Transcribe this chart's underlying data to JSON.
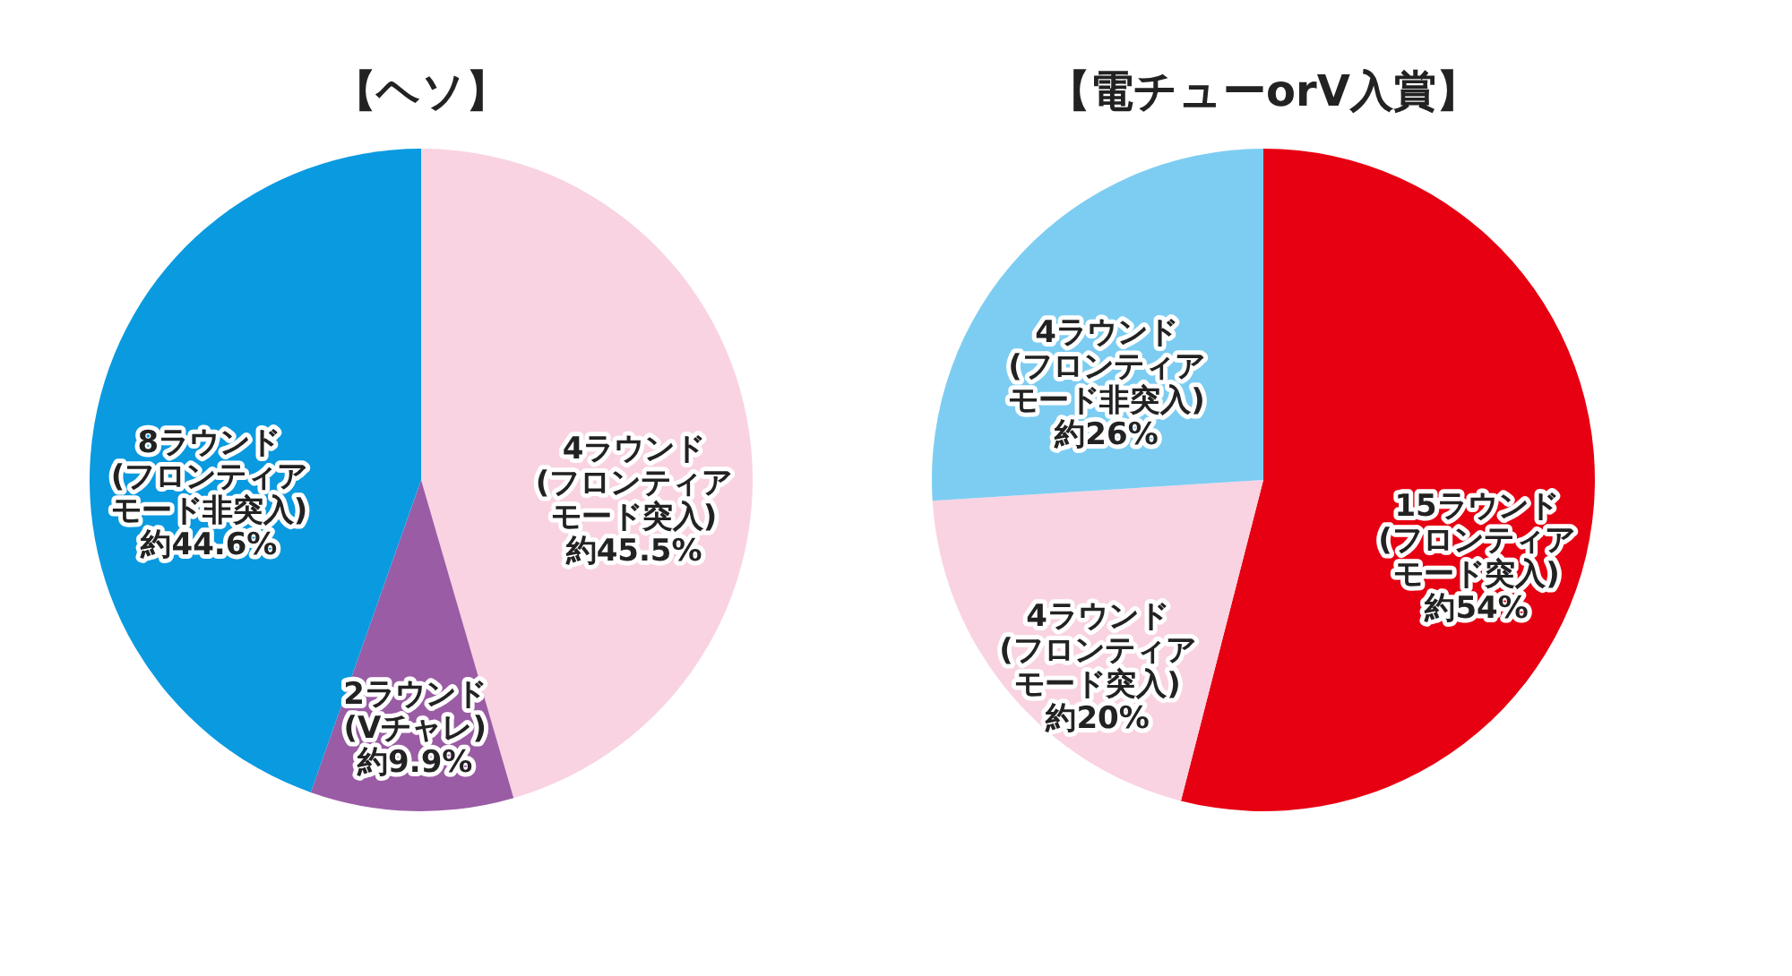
{
  "chart_data": [
    {
      "type": "pie",
      "title": "【ヘソ】",
      "categories": [
        "4ラウンド\n(フロンティアモード突入)",
        "2ラウンド\n(Vチャレ)",
        "8ラウンド\n(フロンティアモード非突入)"
      ],
      "values": [
        45.5,
        9.9,
        44.6
      ],
      "colors": [
        "#f9d3e2",
        "#9a5ca4",
        "#0a9ae0"
      ],
      "value_labels": [
        "約45.5%",
        "約9.9%",
        "約44.6%"
      ],
      "legend": false
    },
    {
      "type": "pie",
      "title": "【電チューorV入賞】",
      "categories": [
        "15ラウンド\n(フロンティアモード突入)",
        "4ラウンド\n(フロンティアモード突入)",
        "4ラウンド\n(フロンティアモード非突入)"
      ],
      "values": [
        54,
        20,
        26
      ],
      "colors": [
        "#e60012",
        "#f9d3e2",
        "#7dcdf2"
      ],
      "value_labels": [
        "約54%",
        "約20%",
        "約26%"
      ],
      "legend": false
    }
  ]
}
